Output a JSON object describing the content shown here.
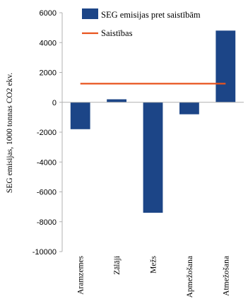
{
  "chart_data": {
    "type": "bar",
    "ylabel": "SEG emisijas, 1000 tonnas CO2 ekv.",
    "ylim": [
      -10000,
      6000
    ],
    "yticks": [
      6000,
      4000,
      2000,
      0,
      -2000,
      -4000,
      -6000,
      -8000,
      -10000
    ],
    "categories": [
      "Aramzemes",
      "Zālāji",
      "Mežs",
      "Apmežošana",
      "Atmežošana"
    ],
    "series": [
      {
        "name": "SEG emisijas pret saistībām",
        "type": "bar",
        "color": "#1c4587",
        "values": [
          -1800,
          200,
          -7400,
          -800,
          4800
        ]
      },
      {
        "name": "Saistības",
        "type": "line",
        "color": "#e8541e",
        "value": 1250
      }
    ],
    "legend_position": "top-right"
  }
}
